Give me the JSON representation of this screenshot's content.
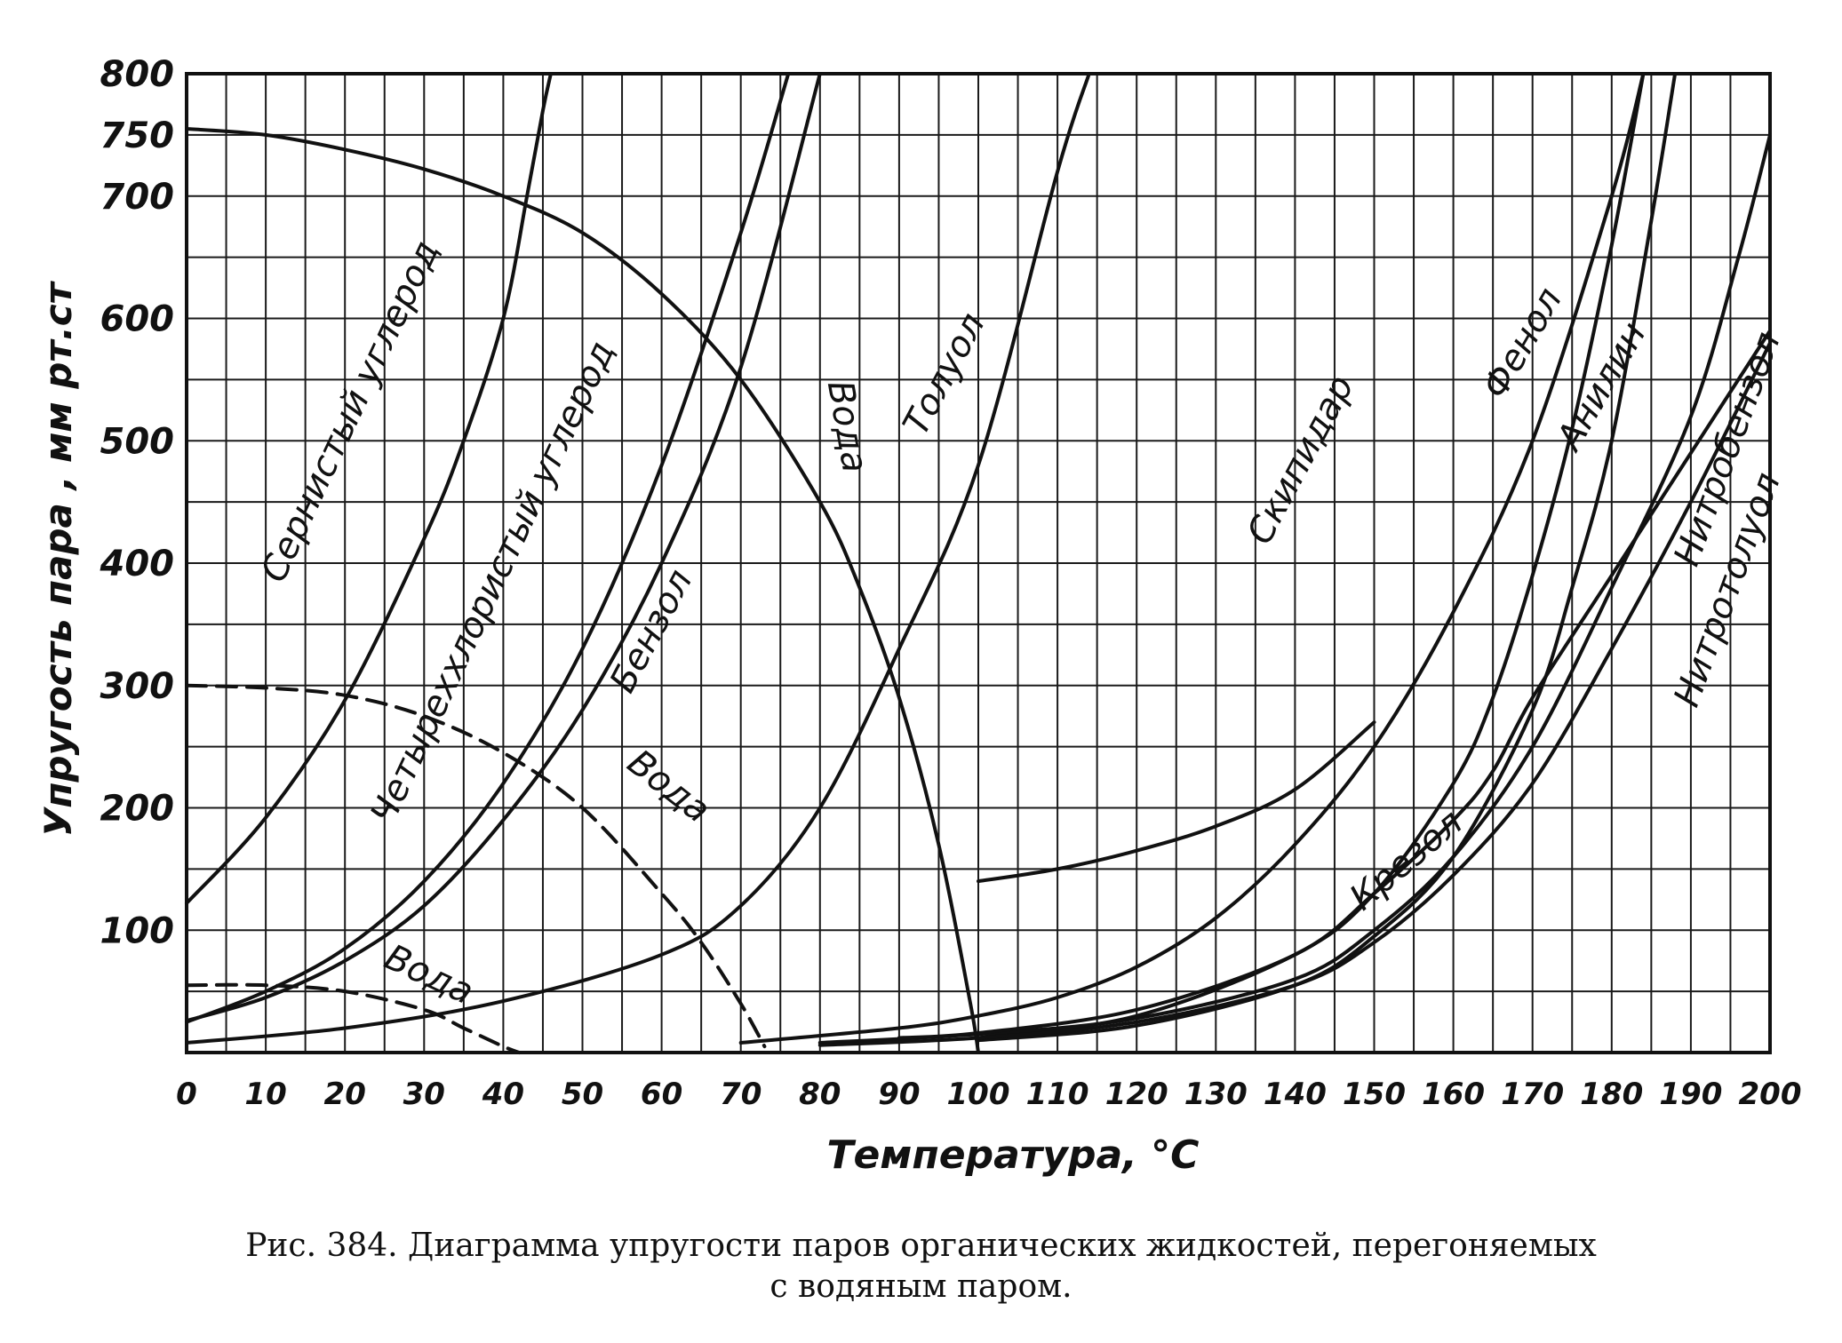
{
  "chart_data": {
    "type": "line",
    "xlabel": "Температура, °C",
    "ylabel": "Упругость пара ,  мм рт.ст",
    "x_ticks": [
      "0",
      "10",
      "20",
      "30",
      "40",
      "50",
      "60",
      "70",
      "80",
      "90",
      "100",
      "110",
      "120",
      "130",
      "140",
      "150",
      "160",
      "170",
      "180",
      "190",
      "200"
    ],
    "y_ticks": [
      {
        "v": 100,
        "t": "100"
      },
      {
        "v": 200,
        "t": "200"
      },
      {
        "v": 300,
        "t": "300"
      },
      {
        "v": 400,
        "t": "400"
      },
      {
        "v": 500,
        "t": "500"
      },
      {
        "v": 600,
        "t": "600"
      },
      {
        "v": 700,
        "t": "700"
      },
      {
        "v": 750,
        "t": "750"
      },
      {
        "v": 800,
        "t": "800"
      }
    ],
    "xlim": [
      0,
      200
    ],
    "ylim": [
      0,
      800
    ],
    "grid": true,
    "series": [
      {
        "name": "Сернистый углерод",
        "style": "solid",
        "points": [
          [
            0,
            122
          ],
          [
            10,
            192
          ],
          [
            20,
            288
          ],
          [
            30,
            420
          ],
          [
            35,
            500
          ],
          [
            40,
            600
          ],
          [
            43,
            700
          ],
          [
            45,
            770
          ],
          [
            46,
            800
          ]
        ]
      },
      {
        "name": "Четыреххлористый углерод",
        "style": "solid",
        "points": [
          [
            0,
            25
          ],
          [
            10,
            50
          ],
          [
            20,
            85
          ],
          [
            30,
            140
          ],
          [
            40,
            220
          ],
          [
            50,
            330
          ],
          [
            60,
            480
          ],
          [
            70,
            670
          ],
          [
            76,
            800
          ]
        ]
      },
      {
        "name": "Бензол",
        "style": "solid",
        "points": [
          [
            0,
            26
          ],
          [
            10,
            45
          ],
          [
            20,
            75
          ],
          [
            30,
            120
          ],
          [
            40,
            190
          ],
          [
            50,
            280
          ],
          [
            60,
            400
          ],
          [
            70,
            560
          ],
          [
            80,
            800
          ]
        ]
      },
      {
        "name": "Толуол",
        "style": "solid",
        "points": [
          [
            0,
            8
          ],
          [
            20,
            20
          ],
          [
            40,
            42
          ],
          [
            60,
            80
          ],
          [
            70,
            120
          ],
          [
            80,
            200
          ],
          [
            90,
            330
          ],
          [
            100,
            480
          ],
          [
            110,
            720
          ],
          [
            114,
            800
          ]
        ]
      },
      {
        "name": "Скипидар",
        "style": "solid",
        "points": [
          [
            70,
            8
          ],
          [
            90,
            20
          ],
          [
            100,
            30
          ],
          [
            110,
            45
          ],
          [
            120,
            70
          ],
          [
            130,
            110
          ],
          [
            140,
            170
          ],
          [
            150,
            250
          ],
          [
            160,
            360
          ],
          [
            170,
            500
          ],
          [
            180,
            700
          ],
          [
            184,
            800
          ]
        ]
      },
      {
        "name": "Фенол",
        "style": "solid",
        "points": [
          [
            100,
            12
          ],
          [
            120,
            30
          ],
          [
            140,
            80
          ],
          [
            150,
            130
          ],
          [
            160,
            220
          ],
          [
            165,
            290
          ],
          [
            170,
            390
          ],
          [
            175,
            510
          ],
          [
            180,
            660
          ],
          [
            184,
            800
          ]
        ]
      },
      {
        "name": "Анилин",
        "style": "solid",
        "points": [
          [
            100,
            10
          ],
          [
            120,
            22
          ],
          [
            140,
            55
          ],
          [
            150,
            95
          ],
          [
            160,
            160
          ],
          [
            170,
            280
          ],
          [
            175,
            380
          ],
          [
            180,
            500
          ],
          [
            185,
            680
          ],
          [
            188,
            800
          ]
        ]
      },
      {
        "name": "Нитробензол",
        "style": "solid",
        "points": [
          [
            80,
            8
          ],
          [
            100,
            15
          ],
          [
            120,
            28
          ],
          [
            140,
            60
          ],
          [
            150,
            100
          ],
          [
            160,
            160
          ],
          [
            170,
            250
          ],
          [
            180,
            380
          ],
          [
            190,
            520
          ],
          [
            196,
            650
          ],
          [
            200,
            750
          ]
        ]
      },
      {
        "name": "Нитротолуол",
        "style": "solid",
        "points": [
          [
            80,
            6
          ],
          [
            100,
            12
          ],
          [
            120,
            25
          ],
          [
            140,
            55
          ],
          [
            150,
            90
          ],
          [
            160,
            145
          ],
          [
            170,
            220
          ],
          [
            180,
            330
          ],
          [
            190,
            450
          ],
          [
            200,
            580
          ]
        ]
      },
      {
        "name": "Крезол",
        "style": "solid",
        "points": [
          [
            90,
            12
          ],
          [
            100,
            16
          ],
          [
            120,
            35
          ],
          [
            140,
            80
          ],
          [
            150,
            130
          ],
          [
            160,
            190
          ],
          [
            165,
            230
          ],
          [
            170,
            290
          ],
          [
            180,
            390
          ],
          [
            190,
            490
          ],
          [
            200,
            590
          ]
        ]
      },
      {
        "name": "Вода",
        "style": "solid",
        "points": [
          [
            0,
            755
          ],
          [
            10,
            750
          ],
          [
            20,
            738
          ],
          [
            30,
            722
          ],
          [
            40,
            700
          ],
          [
            50,
            670
          ],
          [
            60,
            620
          ],
          [
            70,
            550
          ],
          [
            80,
            450
          ],
          [
            85,
            380
          ],
          [
            90,
            290
          ],
          [
            95,
            170
          ],
          [
            99,
            40
          ],
          [
            100,
            0
          ]
        ]
      },
      {
        "name": "Вода",
        "style": "dashed",
        "points": [
          [
            0,
            300
          ],
          [
            10,
            298
          ],
          [
            20,
            292
          ],
          [
            30,
            275
          ],
          [
            40,
            245
          ],
          [
            50,
            200
          ],
          [
            60,
            130
          ],
          [
            65,
            90
          ],
          [
            70,
            40
          ],
          [
            73,
            5
          ]
        ]
      },
      {
        "name": "Вода",
        "style": "dashed",
        "points": [
          [
            0,
            55
          ],
          [
            10,
            55
          ],
          [
            20,
            50
          ],
          [
            30,
            35
          ],
          [
            35,
            20
          ],
          [
            40,
            5
          ],
          [
            42,
            0
          ]
        ]
      },
      {
        "name": "",
        "style": "solid",
        "points": [
          [
            100,
            140
          ],
          [
            110,
            150
          ],
          [
            120,
            165
          ],
          [
            130,
            185
          ],
          [
            140,
            215
          ],
          [
            150,
            270
          ]
        ]
      }
    ],
    "labels": [
      {
        "text": "Сернистый углерод",
        "x": 22,
        "y": 520,
        "rotate": -65
      },
      {
        "text": "Четыреххлористый углерод",
        "x": 40,
        "y": 380,
        "rotate": -65
      },
      {
        "text": "Бензол",
        "x": 60,
        "y": 340,
        "rotate": -62
      },
      {
        "text": "Вода",
        "x": 82,
        "y": 510,
        "rotate": 80
      },
      {
        "text": "Толуол",
        "x": 97,
        "y": 550,
        "rotate": -62
      },
      {
        "text": "Скипидар",
        "x": 142,
        "y": 480,
        "rotate": -62
      },
      {
        "text": "Фенол",
        "x": 170,
        "y": 575,
        "rotate": -60
      },
      {
        "text": "Анилин",
        "x": 180,
        "y": 540,
        "rotate": -60
      },
      {
        "text": "Нитробензол",
        "x": 196,
        "y": 490,
        "rotate": -70
      },
      {
        "text": "Нитротолуол",
        "x": 196,
        "y": 375,
        "rotate": -70
      },
      {
        "text": "Крезол",
        "x": 155,
        "y": 150,
        "rotate": -40
      },
      {
        "text": "Вода",
        "x": 60,
        "y": 210,
        "rotate": 38
      },
      {
        "text": "Вода",
        "x": 30,
        "y": 55,
        "rotate": 25
      }
    ]
  },
  "caption": {
    "line1": "Рис. 384. Диаграмма упругости паров органических жидкостей, перегоняемых",
    "line2": "с водяным паром."
  }
}
